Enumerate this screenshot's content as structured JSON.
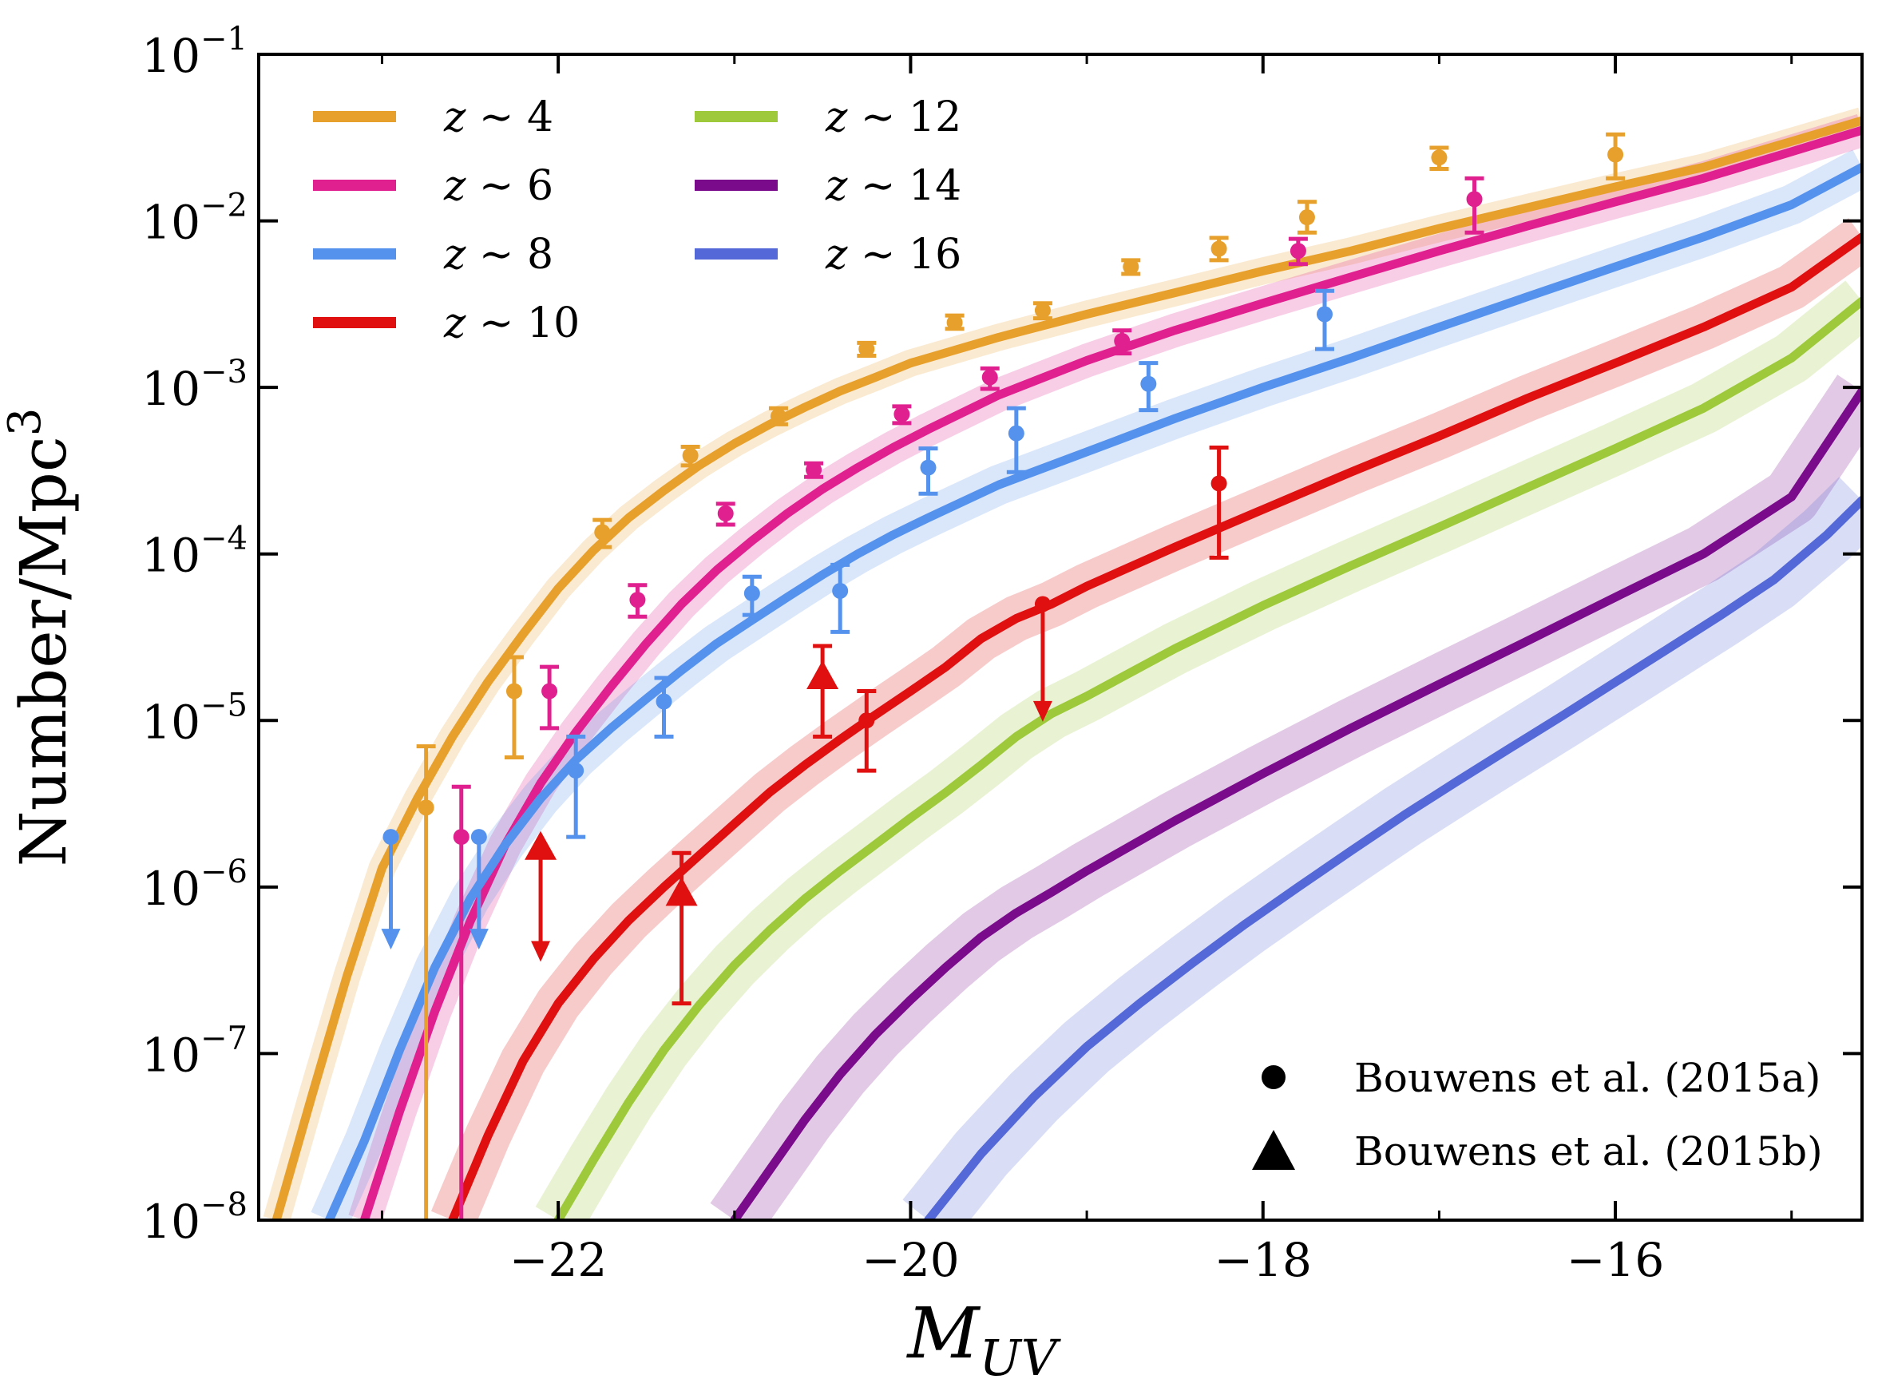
{
  "chart_data": {
    "type": "line",
    "xlabel": "M",
    "xlabel_sub": "UV",
    "ylabel": "Number/Mpc",
    "ylabel_sup": "3",
    "xlim": [
      -23.7,
      -14.6
    ],
    "ylim": [
      1e-08,
      0.1
    ],
    "yscale": "log",
    "x_ticks": [
      -22,
      -20,
      -18,
      -16
    ],
    "x_tick_labels": [
      "−22",
      "−20",
      "−18",
      "−16"
    ],
    "y_ticks": [
      1e-08,
      1e-07,
      1e-06,
      1e-05,
      0.0001,
      0.001,
      0.01,
      0.1
    ],
    "y_tick_exponents": [
      "−8",
      "−7",
      "−6",
      "−5",
      "−4",
      "−3",
      "−2",
      "−1"
    ],
    "y_tick_base": "10",
    "legend_position": "top-left",
    "series": [
      {
        "name": "4",
        "color": "#e8a02c",
        "x": [
          -23.6,
          -23.4,
          -23.2,
          -23.0,
          -22.8,
          -22.6,
          -22.4,
          -22.2,
          -22.0,
          -21.8,
          -21.6,
          -21.4,
          -21.2,
          -21.0,
          -20.8,
          -20.6,
          -20.4,
          -20.2,
          -20.0,
          -19.5,
          -19.0,
          -18.5,
          -18.0,
          -17.5,
          -17.0,
          -16.5,
          -16.0,
          -15.5,
          -15.0,
          -14.6
        ],
        "y": [
          1e-08,
          5.5e-08,
          2.9e-07,
          1.3e-06,
          3.4e-06,
          8e-06,
          1.7e-05,
          3.3e-05,
          6.2e-05,
          0.000105,
          0.000165,
          0.00024,
          0.00034,
          0.00046,
          0.0006,
          0.00076,
          0.00095,
          0.00115,
          0.0014,
          0.002,
          0.00275,
          0.0037,
          0.005,
          0.0066,
          0.009,
          0.012,
          0.016,
          0.021,
          0.03,
          0.04
        ]
      },
      {
        "name": "6",
        "color": "#e0208e",
        "x": [
          -23.1,
          -22.9,
          -22.7,
          -22.5,
          -22.3,
          -22.1,
          -21.9,
          -21.7,
          -21.5,
          -21.3,
          -21.1,
          -20.9,
          -20.7,
          -20.5,
          -20.3,
          -20.1,
          -19.9,
          -19.5,
          -19.0,
          -18.5,
          -18.0,
          -17.5,
          -17.0,
          -16.5,
          -16.0,
          -15.5,
          -15.0,
          -14.6
        ],
        "y": [
          1e-08,
          4.5e-08,
          1.8e-07,
          6.2e-07,
          1.8e-06,
          4.2e-06,
          8.5e-06,
          1.6e-05,
          2.9e-05,
          5e-05,
          8e-05,
          0.00012,
          0.000175,
          0.000245,
          0.00033,
          0.000435,
          0.00056,
          0.0009,
          0.00145,
          0.0022,
          0.0032,
          0.0046,
          0.0066,
          0.0093,
          0.013,
          0.018,
          0.026,
          0.035
        ]
      },
      {
        "name": "8",
        "color": "#5592ee",
        "x": [
          -23.3,
          -23.1,
          -22.9,
          -22.7,
          -22.5,
          -22.3,
          -22.1,
          -21.9,
          -21.7,
          -21.5,
          -21.3,
          -21.1,
          -20.9,
          -20.7,
          -20.5,
          -20.3,
          -20.1,
          -19.9,
          -19.5,
          -19.0,
          -18.5,
          -18.0,
          -17.5,
          -17.0,
          -16.5,
          -16.0,
          -15.5,
          -15.0,
          -14.6
        ],
        "y": [
          1e-08,
          3e-08,
          1.05e-07,
          3.3e-07,
          8.5e-07,
          1.8e-06,
          3.4e-06,
          5.8e-06,
          9e-06,
          1.35e-05,
          2e-05,
          2.9e-05,
          4e-05,
          5.5e-05,
          7.5e-05,
          0.0001,
          0.00013,
          0.000165,
          0.00026,
          0.00041,
          0.00065,
          0.001,
          0.0015,
          0.0023,
          0.0035,
          0.0053,
          0.008,
          0.0125,
          0.021
        ]
      },
      {
        "name": "10",
        "color": "#e01010",
        "x": [
          -22.6,
          -22.4,
          -22.2,
          -22.0,
          -21.8,
          -21.6,
          -21.4,
          -21.2,
          -21.0,
          -20.8,
          -20.6,
          -20.4,
          -20.2,
          -20.0,
          -19.8,
          -19.6,
          -19.4,
          -19.2,
          -19.0,
          -18.5,
          -18.0,
          -17.5,
          -17.0,
          -16.5,
          -16.0,
          -15.5,
          -15.0,
          -14.6
        ],
        "y": [
          1e-08,
          3.2e-08,
          9e-08,
          2e-07,
          3.7e-07,
          6.3e-07,
          1e-06,
          1.55e-06,
          2.4e-06,
          3.7e-06,
          5.4e-06,
          7.7e-06,
          1.08e-05,
          1.5e-05,
          2.1e-05,
          3.1e-05,
          4.1e-05,
          5e-05,
          6.4e-05,
          0.00011,
          0.000185,
          0.00031,
          0.00051,
          0.00086,
          0.0014,
          0.0023,
          0.004,
          0.008
        ]
      },
      {
        "name": "12",
        "color": "#9dc93a",
        "x": [
          -22.0,
          -21.8,
          -21.6,
          -21.4,
          -21.2,
          -21.0,
          -20.8,
          -20.6,
          -20.4,
          -20.2,
          -20.0,
          -19.8,
          -19.6,
          -19.4,
          -19.2,
          -19.0,
          -18.5,
          -18.0,
          -17.5,
          -17.0,
          -16.5,
          -16.0,
          -15.5,
          -15.0,
          -14.6
        ],
        "y": [
          1e-08,
          2.3e-08,
          5.1e-08,
          1.05e-07,
          1.95e-07,
          3.4e-07,
          5.5e-07,
          8.5e-07,
          1.25e-06,
          1.8e-06,
          2.6e-06,
          3.7e-06,
          5.4e-06,
          8e-06,
          1.1e-05,
          1.4e-05,
          2.7e-05,
          4.9e-05,
          8.5e-05,
          0.000145,
          0.00025,
          0.00043,
          0.00075,
          0.0015,
          0.0033
        ]
      },
      {
        "name": "14",
        "color": "#7a0c8c",
        "x": [
          -21.0,
          -20.8,
          -20.6,
          -20.4,
          -20.2,
          -20.0,
          -19.8,
          -19.6,
          -19.4,
          -19.2,
          -19.0,
          -18.5,
          -18.0,
          -17.5,
          -17.0,
          -16.5,
          -16.0,
          -15.5,
          -15.0,
          -14.6
        ],
        "y": [
          1e-08,
          2e-08,
          4e-08,
          7.5e-08,
          1.3e-07,
          2.1e-07,
          3.3e-07,
          5e-07,
          7e-07,
          9.3e-07,
          1.25e-06,
          2.5e-06,
          4.8e-06,
          9e-06,
          1.65e-05,
          3e-05,
          5.5e-05,
          0.0001,
          0.00022,
          0.00095
        ]
      },
      {
        "name": "16",
        "color": "#5468d8",
        "x": [
          -19.9,
          -19.6,
          -19.3,
          -19.0,
          -18.7,
          -18.4,
          -18.1,
          -17.8,
          -17.5,
          -17.2,
          -16.9,
          -16.6,
          -16.3,
          -16.0,
          -15.7,
          -15.4,
          -15.1,
          -14.8,
          -14.6
        ],
        "y": [
          1e-08,
          2.5e-08,
          5.5e-08,
          1.1e-07,
          2e-07,
          3.5e-07,
          6e-07,
          1e-06,
          1.65e-06,
          2.7e-06,
          4.3e-06,
          6.8e-06,
          1.07e-05,
          1.7e-05,
          2.7e-05,
          4.3e-05,
          7e-05,
          0.00013,
          0.00021
        ]
      }
    ],
    "observations": [
      {
        "series": "4",
        "marker": "circle",
        "points": [
          {
            "x": -22.75,
            "y": 3e-06,
            "lo": 1e-08,
            "hi": 7e-06
          },
          {
            "x": -22.25,
            "y": 1.5e-05,
            "lo": 6e-06,
            "hi": 2.4e-05
          },
          {
            "x": -21.75,
            "y": 0.000135,
            "lo": 0.00011,
            "hi": 0.00016
          },
          {
            "x": -21.25,
            "y": 0.00039,
            "lo": 0.00034,
            "hi": 0.00044
          },
          {
            "x": -20.75,
            "y": 0.00067,
            "lo": 0.0006,
            "hi": 0.00075
          },
          {
            "x": -20.25,
            "y": 0.0017,
            "lo": 0.00155,
            "hi": 0.00185
          },
          {
            "x": -19.75,
            "y": 0.00245,
            "lo": 0.00225,
            "hi": 0.0027
          },
          {
            "x": -19.25,
            "y": 0.0029,
            "lo": 0.0026,
            "hi": 0.0032
          },
          {
            "x": -18.75,
            "y": 0.0053,
            "lo": 0.0048,
            "hi": 0.0058
          },
          {
            "x": -18.25,
            "y": 0.0068,
            "lo": 0.0058,
            "hi": 0.0079
          },
          {
            "x": -17.75,
            "y": 0.0105,
            "lo": 0.0085,
            "hi": 0.013
          },
          {
            "x": -17.0,
            "y": 0.024,
            "lo": 0.0205,
            "hi": 0.0275
          },
          {
            "x": -16.0,
            "y": 0.025,
            "lo": 0.018,
            "hi": 0.033
          }
        ]
      },
      {
        "series": "6",
        "marker": "circle",
        "points": [
          {
            "x": -22.55,
            "y": 2e-06,
            "lo": 1e-08,
            "hi": 4e-06
          },
          {
            "x": -22.05,
            "y": 1.5e-05,
            "lo": 9e-06,
            "hi": 2.1e-05
          },
          {
            "x": -21.55,
            "y": 5.3e-05,
            "lo": 4.2e-05,
            "hi": 6.5e-05
          },
          {
            "x": -21.05,
            "y": 0.000175,
            "lo": 0.00015,
            "hi": 0.0002
          },
          {
            "x": -20.55,
            "y": 0.00032,
            "lo": 0.00029,
            "hi": 0.00035
          },
          {
            "x": -20.05,
            "y": 0.00069,
            "lo": 0.00061,
            "hi": 0.00077
          },
          {
            "x": -19.55,
            "y": 0.00115,
            "lo": 0.00098,
            "hi": 0.0013
          },
          {
            "x": -18.8,
            "y": 0.0019,
            "lo": 0.0016,
            "hi": 0.0022
          },
          {
            "x": -17.8,
            "y": 0.0066,
            "lo": 0.0055,
            "hi": 0.0078
          },
          {
            "x": -16.8,
            "y": 0.0135,
            "lo": 0.0085,
            "hi": 0.018
          }
        ]
      },
      {
        "series": "8",
        "marker": "circle",
        "points": [
          {
            "x": -21.9,
            "y": 5e-06,
            "lo": 2e-06,
            "hi": 8e-06
          },
          {
            "x": -21.4,
            "y": 1.3e-05,
            "lo": 8e-06,
            "hi": 1.8e-05
          },
          {
            "x": -20.9,
            "y": 5.8e-05,
            "lo": 4.3e-05,
            "hi": 7.3e-05
          },
          {
            "x": -20.4,
            "y": 6e-05,
            "lo": 3.4e-05,
            "hi": 8.6e-05
          },
          {
            "x": -19.9,
            "y": 0.00033,
            "lo": 0.00023,
            "hi": 0.00043
          },
          {
            "x": -19.4,
            "y": 0.00053,
            "lo": 0.00031,
            "hi": 0.00075
          },
          {
            "x": -18.65,
            "y": 0.00105,
            "lo": 0.00073,
            "hi": 0.0014
          },
          {
            "x": -17.65,
            "y": 0.00275,
            "lo": 0.0017,
            "hi": 0.0038
          }
        ]
      },
      {
        "series": "10",
        "marker": "circle",
        "points": [
          {
            "x": -20.25,
            "y": 1e-05,
            "lo": 5e-06,
            "hi": 1.5e-05
          },
          {
            "x": -18.25,
            "y": 0.000265,
            "lo": 9.5e-05,
            "hi": 0.000435
          }
        ]
      },
      {
        "series": "10",
        "marker": "triangle",
        "points": [
          {
            "x": -21.3,
            "y": 9e-07,
            "lo": 2e-07,
            "hi": 1.6e-06
          },
          {
            "x": -20.5,
            "y": 1.8e-05,
            "lo": 8e-06,
            "hi": 2.8e-05
          }
        ]
      }
    ],
    "upper_limits": [
      {
        "series": "8",
        "marker": "circle",
        "x": -22.95,
        "y": 2e-06,
        "to": 4.5e-07
      },
      {
        "series": "8",
        "marker": "circle",
        "x": -22.45,
        "y": 2e-06,
        "to": 4.5e-07
      },
      {
        "series": "10",
        "marker": "triangle",
        "x": -22.1,
        "y": 1.7e-06,
        "to": 3.8e-07
      },
      {
        "series": "10",
        "marker": "circle",
        "x": -19.25,
        "y": 5e-05,
        "to": 1.05e-05
      }
    ],
    "legend": {
      "prefix": "z",
      "symbol": "∼",
      "items": [
        "4",
        "6",
        "8",
        "10",
        "12",
        "14",
        "16"
      ]
    },
    "reference_legend": [
      {
        "marker": "circle",
        "label": "Bouwens et al. (2015a)"
      },
      {
        "marker": "triangle",
        "label": "Bouwens et al. (2015b)"
      }
    ]
  }
}
